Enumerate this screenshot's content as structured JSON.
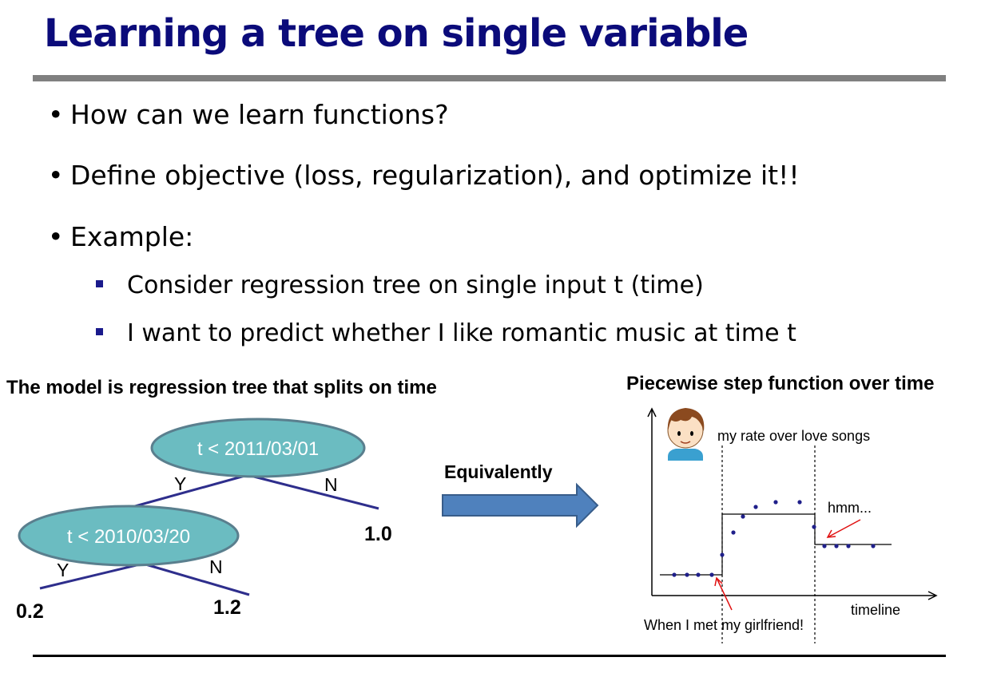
{
  "slide": {
    "title": "Learning a tree on single variable",
    "bullets": [
      "How can we learn functions?",
      "Define objective (loss, regularization), and optimize it!!",
      "Example:"
    ],
    "sub_bullets": [
      "Consider regression tree on single input t (time)",
      "I want to predict whether I like romantic music at time t"
    ],
    "bullet_glyph": "•"
  },
  "tree": {
    "caption": "The model is regression tree that splits on time",
    "root_label": "t < 2011/03/01",
    "child_label": "t < 2010/03/20",
    "root_yes": "Y",
    "root_no": "N",
    "child_yes": "Y",
    "child_no": "N",
    "leaf_root_no": "1.0",
    "leaf_child_yes": "0.2",
    "leaf_child_no": "1.2",
    "node_fill": "#6bbcc1",
    "edge_color": "#2e2e8c"
  },
  "arrow": {
    "label": "Equivalently",
    "fill": "#4f81bd"
  },
  "step_plot": {
    "caption": "Piecewise step function over time",
    "y_label": "my rate over love songs",
    "x_label": "timeline",
    "annotation_hmm": "hmm...",
    "annotation_girlfriend": "When I met my girlfriend!",
    "annotation_color": "#e01010",
    "point_color": "#1f1f8a"
  }
}
